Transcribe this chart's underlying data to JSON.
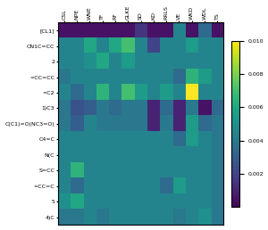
{
  "col_labels": [
    "CSL",
    "NPE",
    "WNE",
    "TF",
    "RF",
    "GLKE",
    "SD",
    "KD",
    "RRLS",
    "VE",
    "WKD",
    "WDL",
    "TS"
  ],
  "row_labels": [
    "[CL1]",
    "CN1C=CC",
    "2",
    "=CC=CC",
    "=C2",
    "1)C3",
    "C(C1)=O(NC3=O)",
    "C4=C",
    "N(C",
    "S=CC",
    "=CC=C",
    "5",
    "4)C"
  ],
  "vmin": 0.0,
  "vmax": 0.01,
  "colormap": "viridis",
  "background": "#ffffff",
  "data": [
    [
      0.0005,
      0.0005,
      0.0005,
      0.0005,
      0.0005,
      0.0005,
      0.0015,
      0.0005,
      0.0005,
      0.0045,
      0.0005,
      0.0035,
      0.0005
    ],
    [
      0.0045,
      0.0045,
      0.006,
      0.0045,
      0.006,
      0.007,
      0.0045,
      0.002,
      0.0045,
      0.0045,
      0.0055,
      0.0045,
      0.0045
    ],
    [
      0.0045,
      0.0045,
      0.005,
      0.006,
      0.0045,
      0.0055,
      0.0045,
      0.0045,
      0.0045,
      0.0045,
      0.0045,
      0.0045,
      0.0045
    ],
    [
      0.004,
      0.0045,
      0.0045,
      0.0045,
      0.0045,
      0.0045,
      0.0045,
      0.0045,
      0.0045,
      0.0035,
      0.0065,
      0.0055,
      0.0045
    ],
    [
      0.0045,
      0.0035,
      0.0045,
      0.0065,
      0.0045,
      0.007,
      0.0055,
      0.0045,
      0.0055,
      0.0045,
      0.01,
      0.0045,
      0.0045
    ],
    [
      0.004,
      0.0025,
      0.003,
      0.004,
      0.0035,
      0.004,
      0.004,
      0.001,
      0.0035,
      0.001,
      0.004,
      0.0005,
      0.0035
    ],
    [
      0.004,
      0.003,
      0.0045,
      0.004,
      0.004,
      0.004,
      0.004,
      0.001,
      0.004,
      0.001,
      0.0055,
      0.0035,
      0.004
    ],
    [
      0.0045,
      0.0045,
      0.0045,
      0.0045,
      0.0045,
      0.0045,
      0.0045,
      0.0045,
      0.0045,
      0.0035,
      0.0055,
      0.0045,
      0.004
    ],
    [
      0.0045,
      0.0045,
      0.0045,
      0.0045,
      0.0045,
      0.0045,
      0.0045,
      0.0045,
      0.0045,
      0.0045,
      0.0045,
      0.0045,
      0.004
    ],
    [
      0.0045,
      0.0065,
      0.0045,
      0.0045,
      0.0045,
      0.0045,
      0.0045,
      0.0045,
      0.0045,
      0.0045,
      0.0045,
      0.0045,
      0.004
    ],
    [
      0.0045,
      0.0035,
      0.0045,
      0.0045,
      0.0045,
      0.0045,
      0.0045,
      0.0045,
      0.0035,
      0.0055,
      0.0045,
      0.0045,
      0.004
    ],
    [
      0.005,
      0.006,
      0.0045,
      0.0045,
      0.0045,
      0.0045,
      0.0045,
      0.0045,
      0.0045,
      0.0045,
      0.0045,
      0.0045,
      0.004
    ],
    [
      0.004,
      0.004,
      0.0045,
      0.004,
      0.0045,
      0.0045,
      0.0045,
      0.0045,
      0.0045,
      0.004,
      0.0045,
      0.005,
      0.004
    ]
  ],
  "cbar_ticks": [
    0.002,
    0.004,
    0.006,
    0.008,
    0.01
  ],
  "figsize": [
    3.0,
    2.58
  ],
  "dpi": 100,
  "tick_fontsize": 4.5,
  "cbar_fontsize": 4.5
}
